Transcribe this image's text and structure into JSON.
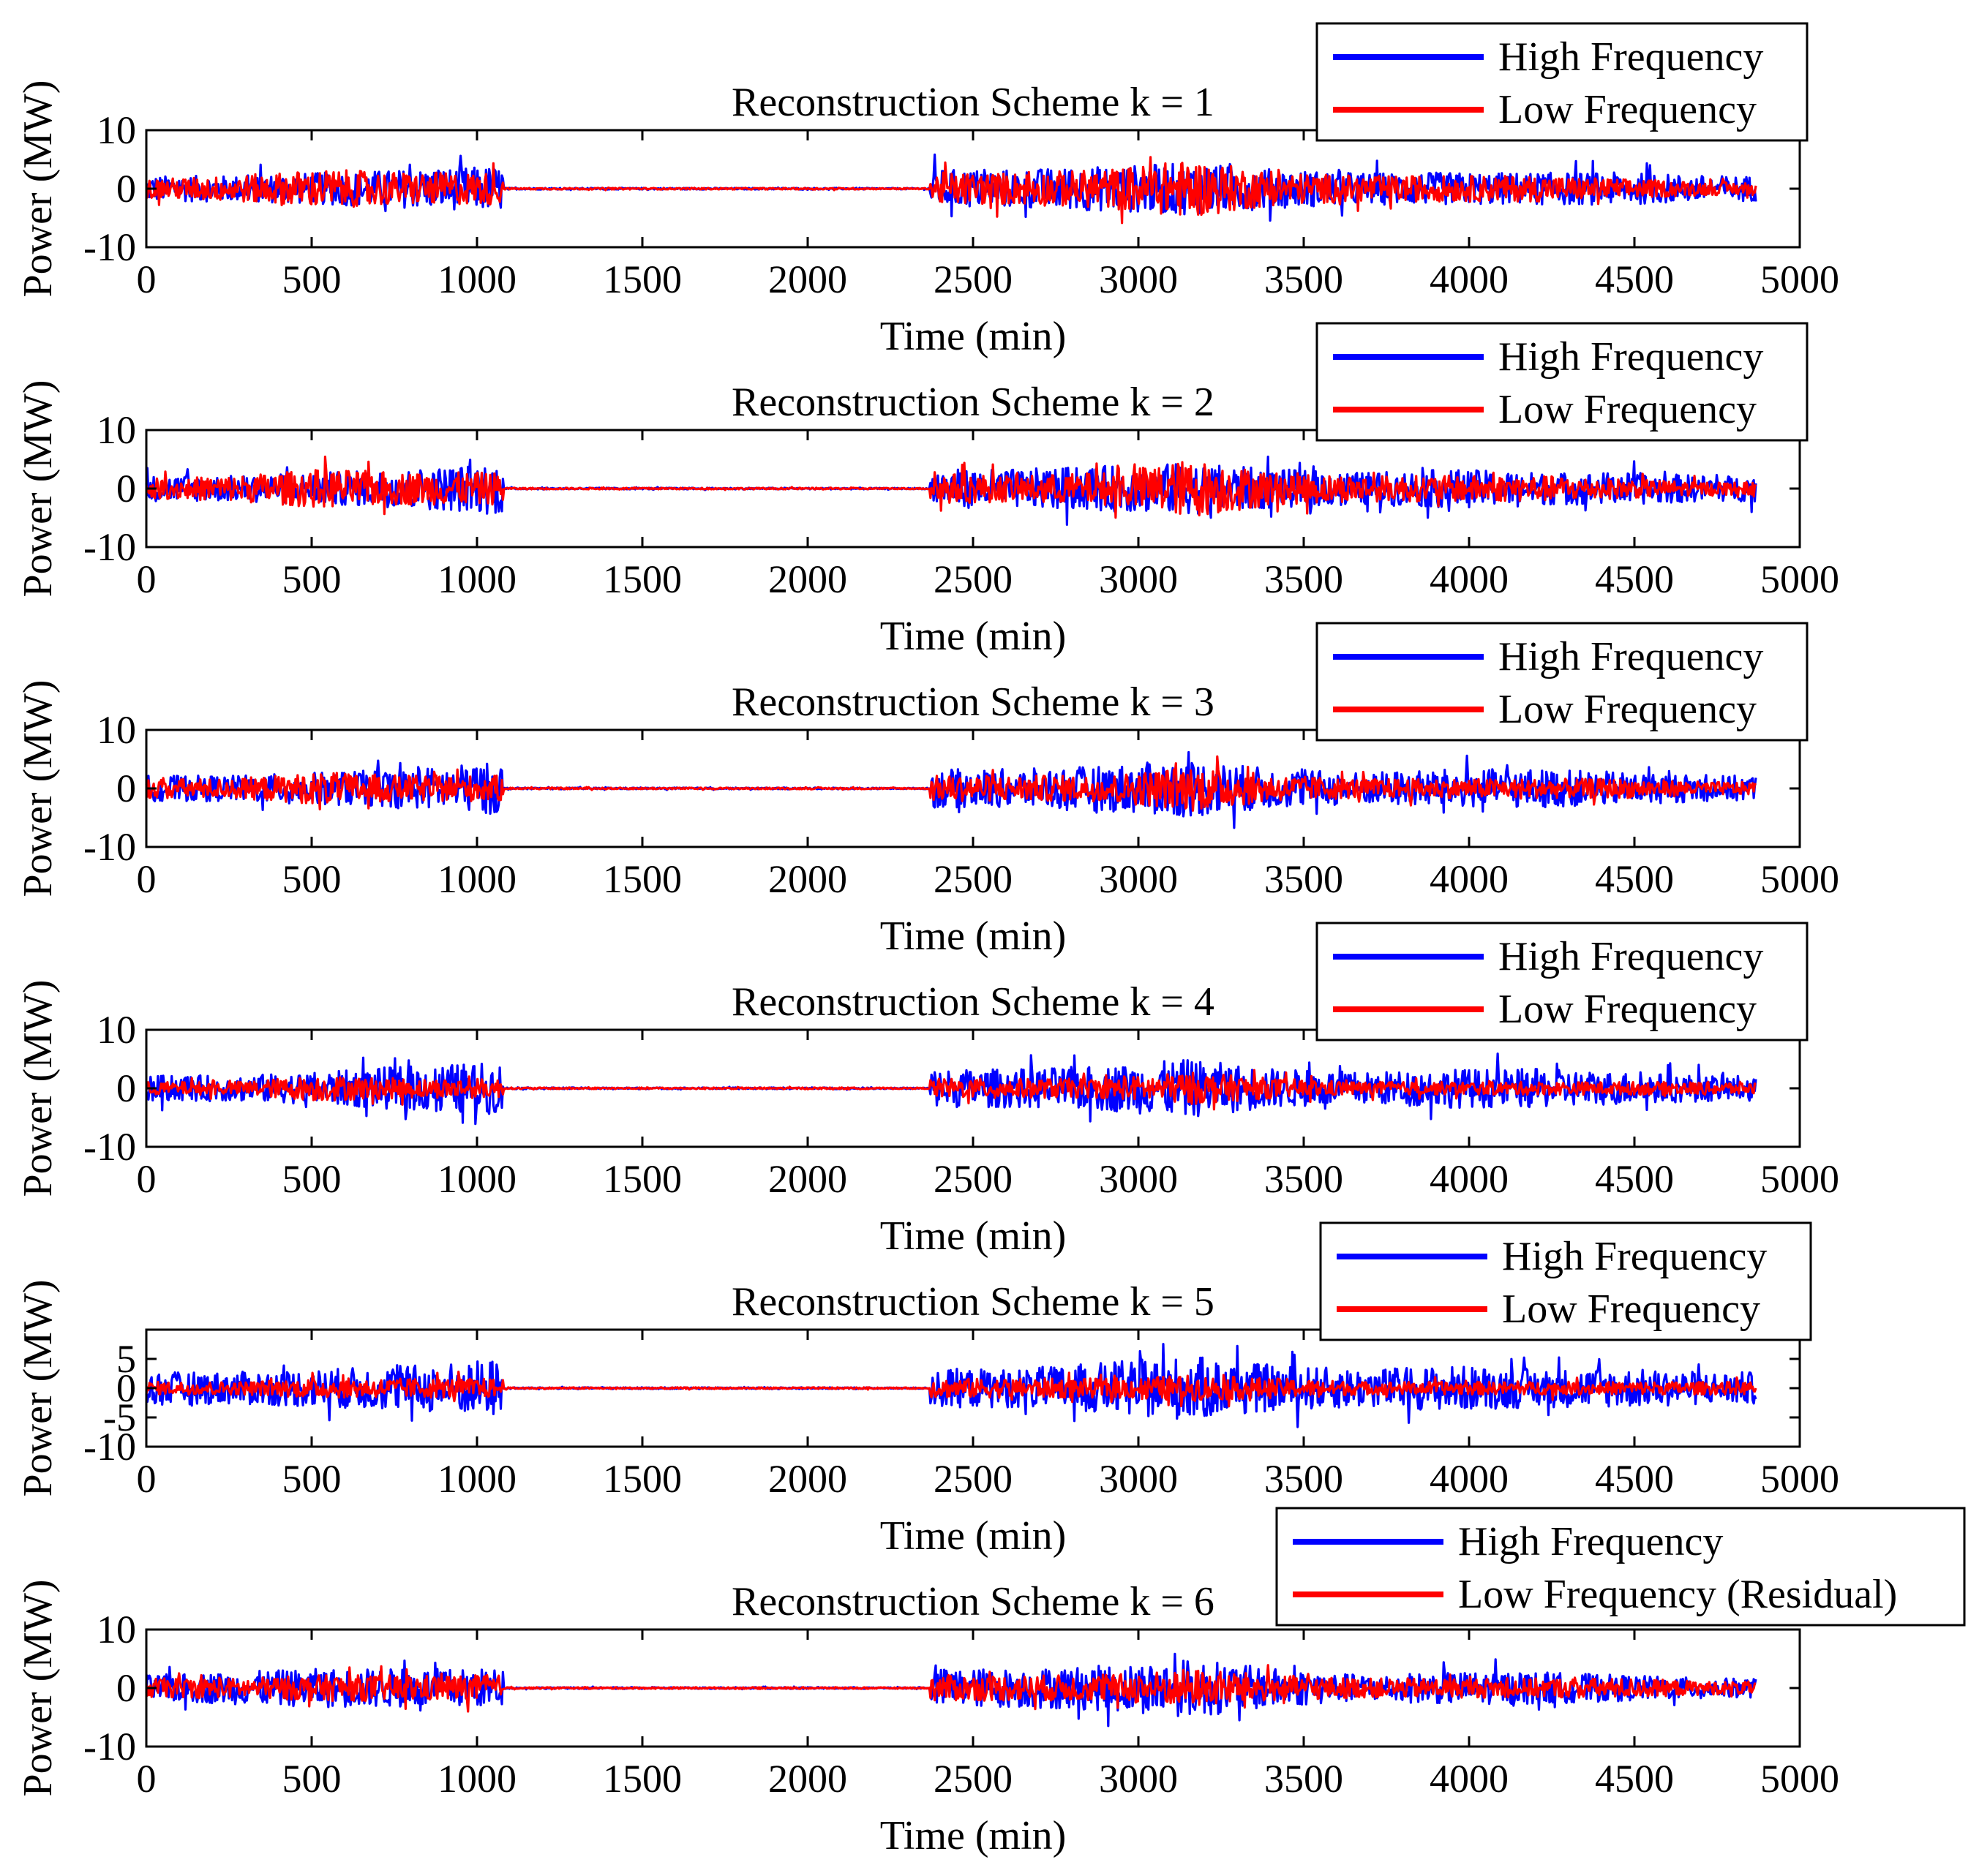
{
  "colors": {
    "high": "#0000ff",
    "low": "#ff0000",
    "axis": "#000000"
  },
  "chart_data": [
    {
      "type": "line",
      "title": "Reconstruction Scheme k = 1",
      "xlabel": "Time (min)",
      "ylabel": "Power (MW)",
      "xlim": [
        0,
        5000
      ],
      "ylim": [
        -10,
        10
      ],
      "xticks": [
        "0",
        "500",
        "1000",
        "1500",
        "2000",
        "2500",
        "3000",
        "3500",
        "4000",
        "4500",
        "5000"
      ],
      "yticks": [
        "10",
        "0",
        "-10"
      ],
      "legend_position": "top-right",
      "series": [
        {
          "name": "High Frequency",
          "color": "#0000ff",
          "amplitude": [
            4,
            4,
            5,
            6,
            7,
            0.2,
            0.2,
            0.2,
            0.2,
            6,
            6,
            7,
            8,
            6,
            5,
            5,
            5,
            5,
            4
          ]
        },
        {
          "name": "Low Frequency",
          "color": "#ff0000",
          "amplitude": [
            3,
            4,
            6,
            5,
            5,
            0.2,
            0.2,
            0.2,
            0.2,
            5,
            5,
            6,
            9,
            5,
            4,
            4,
            4,
            3,
            2
          ]
        }
      ]
    },
    {
      "type": "line",
      "title": "Reconstruction Scheme k = 2",
      "xlabel": "Time (min)",
      "ylabel": "Power (MW)",
      "xlim": [
        0,
        5000
      ],
      "ylim": [
        -10,
        10
      ],
      "xticks": [
        "0",
        "500",
        "1000",
        "1500",
        "2000",
        "2500",
        "3000",
        "3500",
        "4000",
        "4500",
        "5000"
      ],
      "yticks": [
        "10",
        "0",
        "-10"
      ],
      "legend_position": "top-right",
      "series": [
        {
          "name": "High Frequency",
          "color": "#0000ff",
          "amplitude": [
            4,
            4,
            5,
            6,
            8,
            0.2,
            0.2,
            0.2,
            0.2,
            6,
            6,
            7,
            8,
            6,
            5,
            6,
            5,
            5,
            4
          ]
        },
        {
          "name": "Low Frequency",
          "color": "#ff0000",
          "amplitude": [
            3,
            4,
            6,
            5,
            5,
            0.2,
            0.2,
            0.2,
            0.2,
            5,
            4,
            5,
            9,
            5,
            4,
            4,
            4,
            3,
            2
          ]
        }
      ]
    },
    {
      "type": "line",
      "title": "Reconstruction Scheme k = 3",
      "xlabel": "Time (min)",
      "ylabel": "Power (MW)",
      "xlim": [
        0,
        5000
      ],
      "ylim": [
        -10,
        10
      ],
      "xticks": [
        "0",
        "500",
        "1000",
        "1500",
        "2000",
        "2500",
        "3000",
        "3500",
        "4000",
        "4500",
        "5000"
      ],
      "yticks": [
        "10",
        "0",
        "-10"
      ],
      "legend_position": "top-right",
      "series": [
        {
          "name": "High Frequency",
          "color": "#0000ff",
          "amplitude": [
            4,
            4,
            5,
            6,
            8,
            0.2,
            0.2,
            0.2,
            0.2,
            6,
            6,
            7,
            9,
            6,
            5,
            6,
            6,
            5,
            4
          ]
        },
        {
          "name": "Low Frequency",
          "color": "#ff0000",
          "amplitude": [
            3,
            3,
            5,
            4,
            4,
            0.2,
            0.2,
            0.2,
            0.2,
            4,
            4,
            4,
            7,
            4,
            3,
            3,
            3,
            3,
            2
          ]
        }
      ]
    },
    {
      "type": "line",
      "title": "Reconstruction Scheme k = 4",
      "xlabel": "Time (min)",
      "ylabel": "Power (MW)",
      "xlim": [
        0,
        5000
      ],
      "ylim": [
        -10,
        10
      ],
      "xticks": [
        "0",
        "500",
        "1000",
        "1500",
        "2000",
        "2500",
        "3000",
        "3500",
        "4000",
        "4500",
        "5000"
      ],
      "yticks": [
        "10",
        "0",
        "-10"
      ],
      "legend_position": "top-right",
      "series": [
        {
          "name": "High Frequency",
          "color": "#0000ff",
          "amplitude": [
            4,
            4,
            5,
            7,
            8,
            0.2,
            0.2,
            0.2,
            0.2,
            6,
            6,
            7,
            9,
            6,
            5,
            6,
            6,
            5,
            4
          ]
        },
        {
          "name": "Low Frequency",
          "color": "#ff0000",
          "amplitude": [
            2,
            2,
            4,
            3,
            3,
            0.2,
            0.2,
            0.2,
            0.2,
            3,
            3,
            3,
            5,
            3,
            2,
            2,
            2,
            2,
            2
          ]
        }
      ]
    },
    {
      "type": "line",
      "title": "Reconstruction Scheme k = 5",
      "xlabel": "Time (min)",
      "ylabel": "Power (MW)",
      "xlim": [
        0,
        5000
      ],
      "ylim": [
        -10,
        10
      ],
      "xticks": [
        "0",
        "500",
        "1000",
        "1500",
        "2000",
        "2500",
        "3000",
        "3500",
        "4000",
        "4500",
        "5000"
      ],
      "yticks": [
        "5",
        "0",
        "-5",
        "-10"
      ],
      "legend_position": "top-right",
      "series": [
        {
          "name": "High Frequency",
          "color": "#0000ff",
          "amplitude": [
            5,
            5,
            6,
            7,
            9,
            0.2,
            0.2,
            0.2,
            0.2,
            6,
            6,
            8,
            10,
            7,
            6,
            7,
            6,
            6,
            5
          ]
        },
        {
          "name": "Low Frequency",
          "color": "#ff0000",
          "amplitude": [
            2,
            2,
            3,
            3,
            3,
            0.2,
            0.2,
            0.2,
            0.2,
            3,
            3,
            3,
            4,
            3,
            2,
            2,
            2,
            2,
            2
          ]
        }
      ]
    },
    {
      "type": "line",
      "title": "Reconstruction Scheme k = 6",
      "xlabel": "Time (min)",
      "ylabel": "Power (MW)",
      "xlim": [
        0,
        5000
      ],
      "ylim": [
        -10,
        10
      ],
      "xticks": [
        "0",
        "500",
        "1000",
        "1500",
        "2000",
        "2500",
        "3000",
        "3500",
        "4000",
        "4500",
        "5000"
      ],
      "yticks": [
        "10",
        "0",
        "-10"
      ],
      "legend_position": "top-right",
      "series": [
        {
          "name": "High Frequency",
          "color": "#0000ff",
          "amplitude": [
            4,
            5,
            6,
            6,
            6,
            0.2,
            0.2,
            0.2,
            0.2,
            6,
            6,
            7,
            9,
            6,
            4,
            5,
            5,
            4,
            3
          ]
        },
        {
          "name": "Low Frequency (Residual)",
          "color": "#ff0000",
          "amplitude": [
            3,
            3,
            4,
            4,
            4,
            0.2,
            0.2,
            0.2,
            0.2,
            4,
            4,
            4,
            6,
            4,
            3,
            3,
            3,
            3,
            2
          ]
        }
      ]
    }
  ]
}
